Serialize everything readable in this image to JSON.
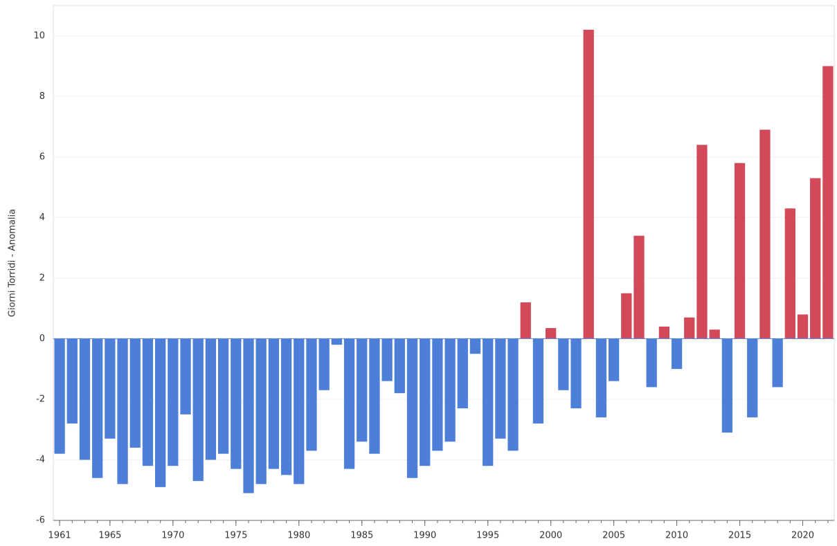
{
  "chart_data": {
    "type": "bar",
    "y_label": "Giorni Torridi - Anomalia",
    "x": [
      1961,
      1962,
      1963,
      1964,
      1965,
      1966,
      1967,
      1968,
      1969,
      1970,
      1971,
      1972,
      1973,
      1974,
      1975,
      1976,
      1977,
      1978,
      1979,
      1980,
      1981,
      1982,
      1983,
      1984,
      1985,
      1986,
      1987,
      1988,
      1989,
      1990,
      1991,
      1992,
      1993,
      1994,
      1995,
      1996,
      1997,
      1998,
      1999,
      2000,
      2001,
      2002,
      2003,
      2004,
      2005,
      2006,
      2007,
      2008,
      2009,
      2010,
      2011,
      2012,
      2013,
      2014,
      2015,
      2016,
      2017,
      2018,
      2019,
      2020,
      2021,
      2022
    ],
    "values": [
      -3.8,
      -2.8,
      -4.0,
      -4.6,
      -3.3,
      -4.8,
      -3.6,
      -4.2,
      -4.9,
      -4.2,
      -2.5,
      -4.7,
      -4.0,
      -3.8,
      -4.3,
      -5.1,
      -4.8,
      -4.3,
      -4.5,
      -4.8,
      -3.7,
      -1.7,
      -0.2,
      -4.3,
      -3.4,
      -3.8,
      -1.4,
      -1.8,
      -4.6,
      -4.2,
      -3.7,
      -3.4,
      -2.3,
      -0.5,
      -4.2,
      -3.3,
      -3.7,
      1.2,
      -2.8,
      0.35,
      -1.7,
      -2.3,
      10.2,
      -2.6,
      -1.4,
      1.5,
      3.4,
      -1.6,
      0.4,
      -1.0,
      0.7,
      6.4,
      0.3,
      -3.1,
      5.8,
      -2.6,
      6.9,
      -1.6,
      4.3,
      0.8,
      5.3,
      9.0
    ],
    "positive_color": "#d2495a",
    "negative_color": "#4e7fd8",
    "xlim": [
      1960.5,
      2022.5
    ],
    "xticks": [
      1961,
      1965,
      1970,
      1975,
      1980,
      1985,
      1990,
      1995,
      2000,
      2005,
      2010,
      2015,
      2020
    ],
    "ylim": [
      -6,
      11
    ],
    "yticks": [
      -6,
      -4,
      -2,
      0,
      2,
      4,
      6,
      8,
      10
    ],
    "grid": true
  }
}
